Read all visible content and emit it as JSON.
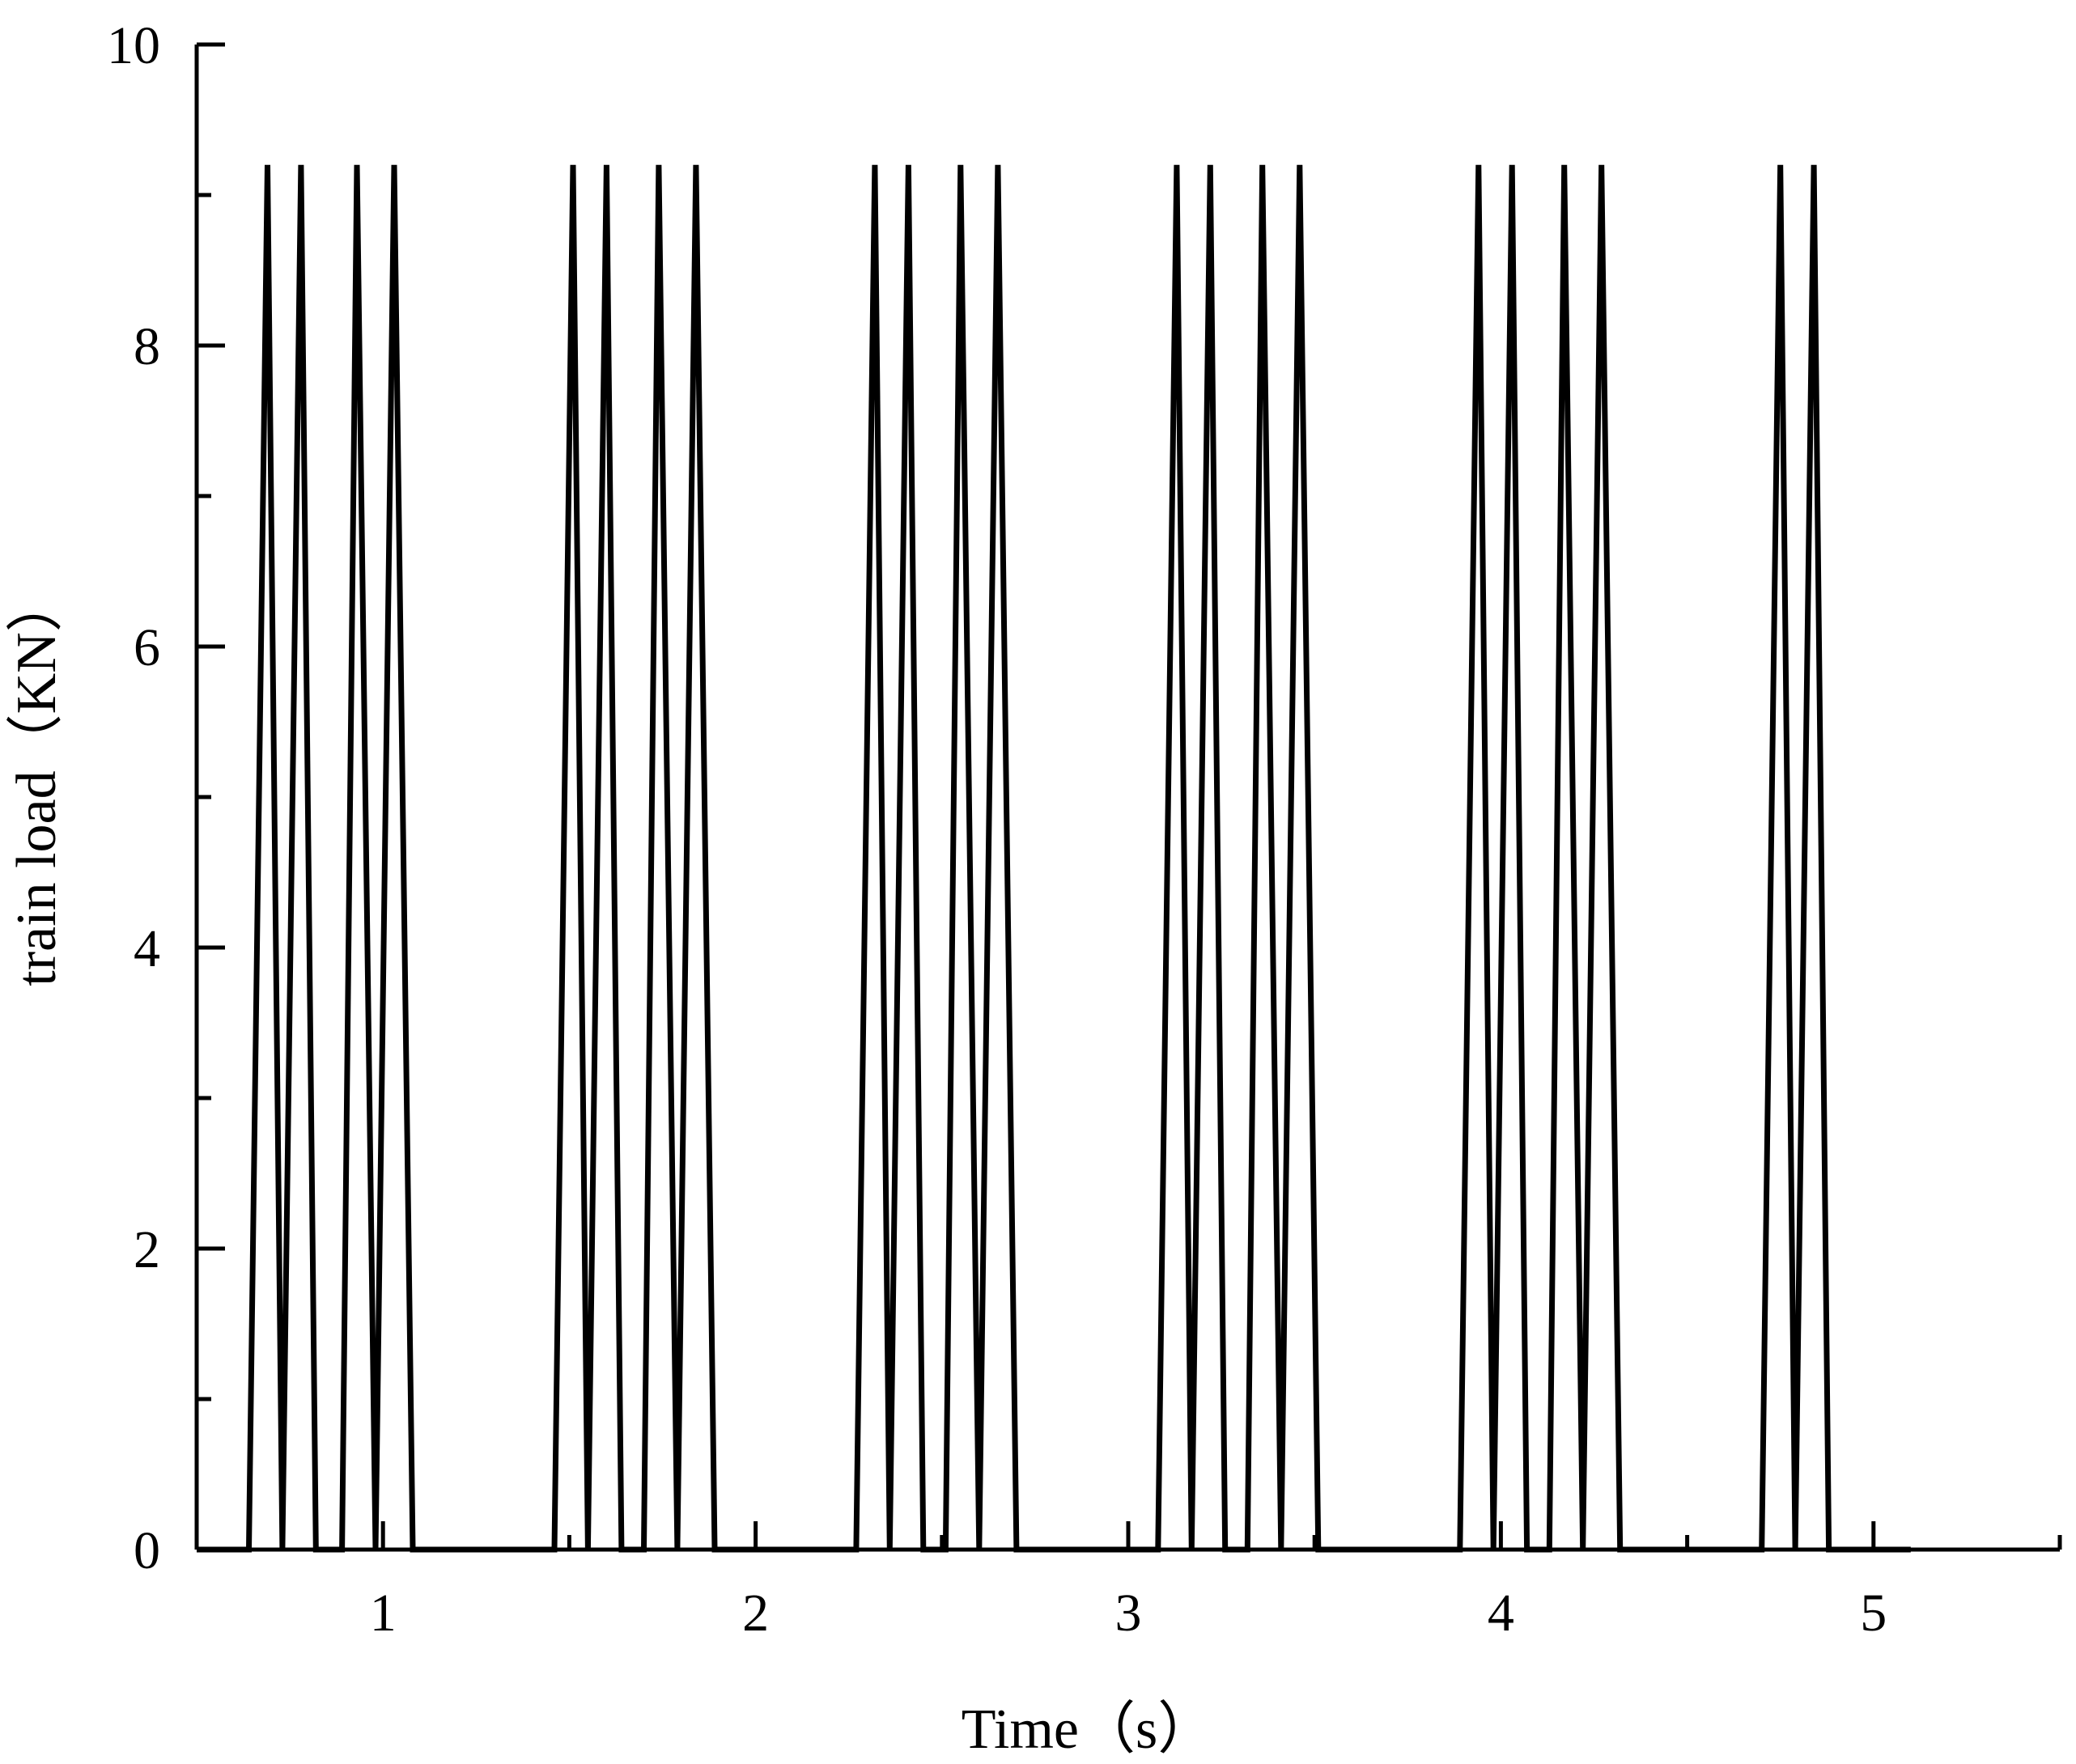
{
  "chart_data": {
    "type": "line",
    "title": "",
    "xlabel": "Time（s）",
    "ylabel": "train load（KN）",
    "xlim": [
      0.5,
      5.5
    ],
    "ylim": [
      0,
      10
    ],
    "x_ticks": [
      1,
      2,
      3,
      4,
      5
    ],
    "x_minor_ticks": [
      0.5,
      1.5,
      2.5,
      3.5,
      4.5,
      5.5
    ],
    "y_ticks": [
      0,
      2,
      4,
      6,
      8,
      10
    ],
    "y_minor_ticks": [
      1,
      3,
      5,
      7,
      9
    ],
    "grid": false,
    "legend": "none",
    "line_color": "#000000",
    "series": [
      {
        "x": [
          0.5,
          0.64,
          0.69,
          0.73,
          0.78,
          0.82,
          0.89,
          0.93,
          0.98,
          1.03,
          1.08,
          1.46,
          1.51,
          1.55,
          1.6,
          1.64,
          1.7,
          1.74,
          1.79,
          1.84,
          1.89,
          2.27,
          2.32,
          2.36,
          2.41,
          2.45,
          2.51,
          2.55,
          2.6,
          2.65,
          2.7,
          3.08,
          3.13,
          3.17,
          3.22,
          3.26,
          3.32,
          3.36,
          3.41,
          3.46,
          3.51,
          3.89,
          3.94,
          3.98,
          4.03,
          4.07,
          4.13,
          4.17,
          4.22,
          4.27,
          4.32,
          4.7,
          4.75,
          4.79,
          4.84,
          4.88,
          5.1
        ],
        "y": [
          0,
          0,
          9.2,
          0,
          9.2,
          0,
          0,
          9.2,
          0,
          9.2,
          0,
          0,
          9.2,
          0,
          9.2,
          0,
          0,
          9.2,
          0,
          9.2,
          0,
          0,
          9.2,
          0,
          9.2,
          0,
          0,
          9.2,
          0,
          9.2,
          0,
          0,
          9.2,
          0,
          9.2,
          0,
          0,
          9.2,
          0,
          9.2,
          0,
          0,
          9.2,
          0,
          9.2,
          0,
          0,
          9.2,
          0,
          9.2,
          0,
          0,
          9.2,
          0,
          9.2,
          0,
          0
        ]
      }
    ]
  }
}
